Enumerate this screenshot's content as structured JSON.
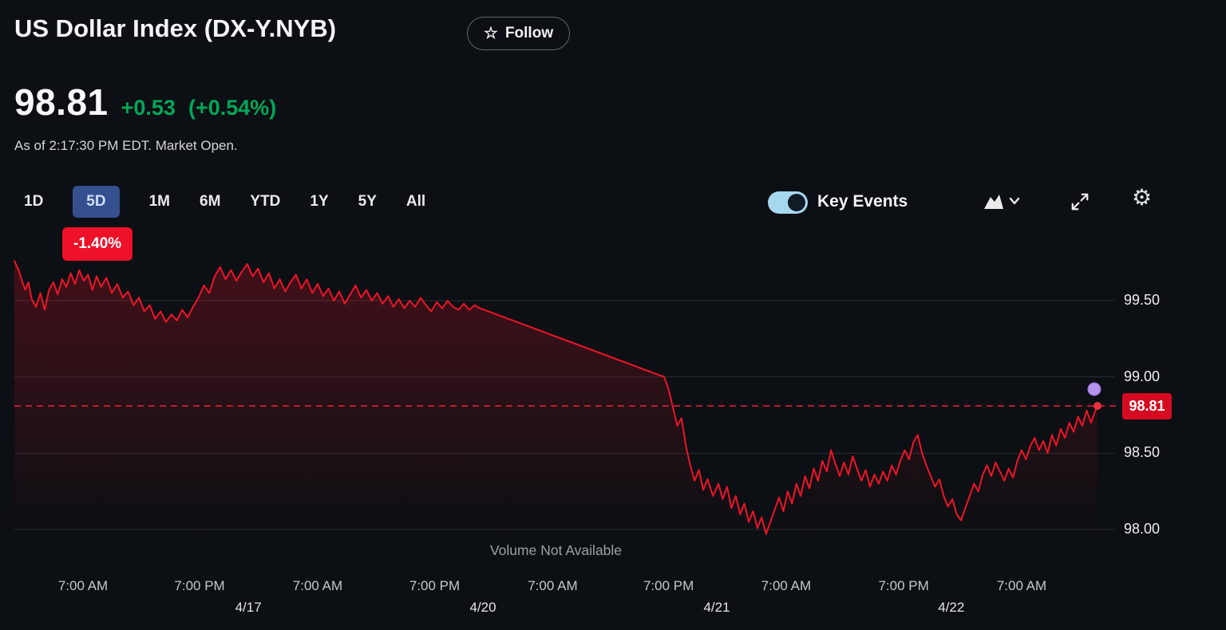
{
  "header": {
    "title": "US Dollar Index (DX-Y.NYB)",
    "follow_label": "Follow",
    "follow_star_glyph": "☆"
  },
  "quote": {
    "price": "98.81",
    "change": "+0.53",
    "change_pct": "(+0.54%)",
    "as_of": "As of 2:17:30 PM EDT. Market Open.",
    "change_color": "#00a759"
  },
  "range_tabs": {
    "items": [
      {
        "label": "1D"
      },
      {
        "label": "5D"
      },
      {
        "label": "1M"
      },
      {
        "label": "6M"
      },
      {
        "label": "YTD"
      },
      {
        "label": "1Y"
      },
      {
        "label": "5Y"
      },
      {
        "label": "All"
      }
    ],
    "selected": "5D",
    "selected_change_badge": "-1.40%"
  },
  "controls": {
    "key_events_label": "Key Events",
    "key_events_on": true,
    "icons": [
      "area-chart-icon",
      "chevron-down-icon",
      "expand-icon",
      "gear-icon"
    ],
    "settings_glyph": "⚙"
  },
  "chart_data": {
    "type": "line",
    "symbol": "DX-Y.NYB",
    "title": "US Dollar Index 5-day price",
    "line_color": "#ed1528",
    "grid_color": "#2a2e33",
    "y_axis": {
      "ticks": [
        99.5,
        99.0,
        98.5,
        98.0
      ],
      "labels": [
        "99.50",
        "99.00",
        "98.50",
        "98.00"
      ],
      "range": [
        97.85,
        99.85
      ]
    },
    "x_axis": {
      "ticks": [
        {
          "label": "7:00 AM",
          "f": 0.0634
        },
        {
          "label": "7:00 PM",
          "f": 0.171
        },
        {
          "label": "7:00 AM",
          "f": 0.28
        },
        {
          "label": "7:00 PM",
          "f": 0.388
        },
        {
          "label": "7:00 AM",
          "f": 0.497
        },
        {
          "label": "7:00 PM",
          "f": 0.604
        },
        {
          "label": "7:00 AM",
          "f": 0.7126
        },
        {
          "label": "7:00 PM",
          "f": 0.821
        },
        {
          "label": "7:00 AM",
          "f": 0.93
        }
      ],
      "dates": [
        {
          "label": "4/17",
          "f": 0.216
        },
        {
          "label": "4/20",
          "f": 0.4326
        },
        {
          "label": "4/21",
          "f": 0.6485
        },
        {
          "label": "4/22",
          "f": 0.865
        }
      ]
    },
    "current_price": {
      "value": "98.81",
      "price": 98.81,
      "line_color": "#ef2438",
      "badge_color": "#d50b21"
    },
    "event_marker": {
      "f": 0.997,
      "price": 98.92,
      "color": "#b792f0"
    },
    "volume_note": "Volume Not Available",
    "series": [
      {
        "name": "DX-Y.NYB",
        "color": "#ed1528",
        "points": [
          [
            0,
            99.76
          ],
          [
            0.004,
            99.7
          ],
          [
            0.007,
            99.63
          ],
          [
            0.01,
            99.57
          ],
          [
            0.013,
            99.62
          ],
          [
            0.016,
            99.51
          ],
          [
            0.02,
            99.46
          ],
          [
            0.024,
            99.55
          ],
          [
            0.028,
            99.44
          ],
          [
            0.032,
            99.57
          ],
          [
            0.036,
            99.62
          ],
          [
            0.04,
            99.54
          ],
          [
            0.044,
            99.64
          ],
          [
            0.048,
            99.59
          ],
          [
            0.052,
            99.68
          ],
          [
            0.056,
            99.61
          ],
          [
            0.06,
            99.7
          ],
          [
            0.064,
            99.63
          ],
          [
            0.068,
            99.67
          ],
          [
            0.072,
            99.57
          ],
          [
            0.076,
            99.66
          ],
          [
            0.08,
            99.59
          ],
          [
            0.085,
            99.65
          ],
          [
            0.09,
            99.55
          ],
          [
            0.095,
            99.61
          ],
          [
            0.1,
            99.52
          ],
          [
            0.105,
            99.56
          ],
          [
            0.11,
            99.47
          ],
          [
            0.115,
            99.52
          ],
          [
            0.12,
            99.43
          ],
          [
            0.125,
            99.47
          ],
          [
            0.13,
            99.38
          ],
          [
            0.135,
            99.43
          ],
          [
            0.14,
            99.36
          ],
          [
            0.145,
            99.41
          ],
          [
            0.15,
            99.37
          ],
          [
            0.155,
            99.44
          ],
          [
            0.16,
            99.39
          ],
          [
            0.165,
            99.46
          ],
          [
            0.17,
            99.52
          ],
          [
            0.175,
            99.6
          ],
          [
            0.18,
            99.55
          ],
          [
            0.185,
            99.66
          ],
          [
            0.19,
            99.72
          ],
          [
            0.195,
            99.64
          ],
          [
            0.2,
            99.7
          ],
          [
            0.205,
            99.63
          ],
          [
            0.21,
            99.69
          ],
          [
            0.215,
            99.74
          ],
          [
            0.22,
            99.66
          ],
          [
            0.225,
            99.71
          ],
          [
            0.23,
            99.62
          ],
          [
            0.235,
            99.68
          ],
          [
            0.24,
            99.58
          ],
          [
            0.245,
            99.64
          ],
          [
            0.25,
            99.56
          ],
          [
            0.255,
            99.62
          ],
          [
            0.26,
            99.67
          ],
          [
            0.265,
            99.58
          ],
          [
            0.27,
            99.64
          ],
          [
            0.275,
            99.55
          ],
          [
            0.28,
            99.61
          ],
          [
            0.285,
            99.53
          ],
          [
            0.29,
            99.58
          ],
          [
            0.295,
            99.5
          ],
          [
            0.3,
            99.56
          ],
          [
            0.305,
            99.48
          ],
          [
            0.31,
            99.54
          ],
          [
            0.315,
            99.6
          ],
          [
            0.32,
            99.52
          ],
          [
            0.325,
            99.57
          ],
          [
            0.33,
            99.5
          ],
          [
            0.335,
            99.55
          ],
          [
            0.34,
            99.48
          ],
          [
            0.345,
            99.53
          ],
          [
            0.35,
            99.46
          ],
          [
            0.355,
            99.51
          ],
          [
            0.36,
            99.45
          ],
          [
            0.365,
            99.5
          ],
          [
            0.37,
            99.46
          ],
          [
            0.375,
            99.52
          ],
          [
            0.38,
            99.47
          ],
          [
            0.385,
            99.43
          ],
          [
            0.39,
            99.49
          ],
          [
            0.395,
            99.45
          ],
          [
            0.4,
            99.5
          ],
          [
            0.405,
            99.46
          ],
          [
            0.41,
            99.44
          ],
          [
            0.415,
            99.48
          ],
          [
            0.42,
            99.44
          ],
          [
            0.425,
            99.47
          ],
          [
            0.43,
            99.45
          ],
          [
            0.6,
            99.0
          ],
          [
            0.604,
            98.92
          ],
          [
            0.608,
            98.8
          ],
          [
            0.612,
            98.68
          ],
          [
            0.616,
            98.73
          ],
          [
            0.62,
            98.55
          ],
          [
            0.624,
            98.42
          ],
          [
            0.628,
            98.32
          ],
          [
            0.632,
            98.39
          ],
          [
            0.636,
            98.26
          ],
          [
            0.64,
            98.33
          ],
          [
            0.645,
            98.22
          ],
          [
            0.65,
            98.3
          ],
          [
            0.654,
            98.2
          ],
          [
            0.658,
            98.28
          ],
          [
            0.662,
            98.14
          ],
          [
            0.666,
            98.22
          ],
          [
            0.67,
            98.1
          ],
          [
            0.674,
            98.17
          ],
          [
            0.678,
            98.05
          ],
          [
            0.682,
            98.12
          ],
          [
            0.686,
            98.01
          ],
          [
            0.69,
            98.08
          ],
          [
            0.694,
            97.97
          ],
          [
            0.698,
            98.05
          ],
          [
            0.702,
            98.13
          ],
          [
            0.706,
            98.21
          ],
          [
            0.71,
            98.12
          ],
          [
            0.714,
            98.25
          ],
          [
            0.718,
            98.17
          ],
          [
            0.722,
            98.3
          ],
          [
            0.726,
            98.22
          ],
          [
            0.73,
            98.35
          ],
          [
            0.734,
            98.27
          ],
          [
            0.738,
            98.4
          ],
          [
            0.742,
            98.32
          ],
          [
            0.746,
            98.45
          ],
          [
            0.75,
            98.38
          ],
          [
            0.754,
            98.52
          ],
          [
            0.758,
            98.43
          ],
          [
            0.762,
            98.35
          ],
          [
            0.766,
            98.44
          ],
          [
            0.77,
            98.36
          ],
          [
            0.774,
            98.48
          ],
          [
            0.778,
            98.4
          ],
          [
            0.782,
            98.32
          ],
          [
            0.786,
            98.39
          ],
          [
            0.79,
            98.28
          ],
          [
            0.794,
            98.36
          ],
          [
            0.798,
            98.3
          ],
          [
            0.802,
            98.38
          ],
          [
            0.806,
            98.32
          ],
          [
            0.81,
            98.42
          ],
          [
            0.814,
            98.36
          ],
          [
            0.818,
            98.45
          ],
          [
            0.822,
            98.52
          ],
          [
            0.826,
            98.46
          ],
          [
            0.83,
            98.57
          ],
          [
            0.834,
            98.62
          ],
          [
            0.838,
            98.5
          ],
          [
            0.842,
            98.42
          ],
          [
            0.846,
            98.35
          ],
          [
            0.85,
            98.28
          ],
          [
            0.854,
            98.33
          ],
          [
            0.858,
            98.22
          ],
          [
            0.862,
            98.15
          ],
          [
            0.866,
            98.2
          ],
          [
            0.87,
            98.1
          ],
          [
            0.874,
            98.06
          ],
          [
            0.878,
            98.14
          ],
          [
            0.882,
            98.22
          ],
          [
            0.886,
            98.3
          ],
          [
            0.89,
            98.25
          ],
          [
            0.894,
            98.36
          ],
          [
            0.898,
            98.42
          ],
          [
            0.902,
            98.35
          ],
          [
            0.906,
            98.44
          ],
          [
            0.91,
            98.38
          ],
          [
            0.914,
            98.32
          ],
          [
            0.918,
            98.4
          ],
          [
            0.922,
            98.34
          ],
          [
            0.926,
            98.45
          ],
          [
            0.93,
            98.52
          ],
          [
            0.934,
            98.46
          ],
          [
            0.938,
            98.55
          ],
          [
            0.942,
            98.6
          ],
          [
            0.946,
            98.52
          ],
          [
            0.95,
            98.58
          ],
          [
            0.954,
            98.5
          ],
          [
            0.958,
            98.62
          ],
          [
            0.962,
            98.55
          ],
          [
            0.966,
            98.66
          ],
          [
            0.97,
            98.6
          ],
          [
            0.974,
            98.7
          ],
          [
            0.978,
            98.64
          ],
          [
            0.982,
            98.74
          ],
          [
            0.986,
            98.68
          ],
          [
            0.99,
            98.78
          ],
          [
            0.994,
            98.7
          ],
          [
            0.997,
            98.76
          ],
          [
            1,
            98.81
          ]
        ]
      }
    ]
  }
}
